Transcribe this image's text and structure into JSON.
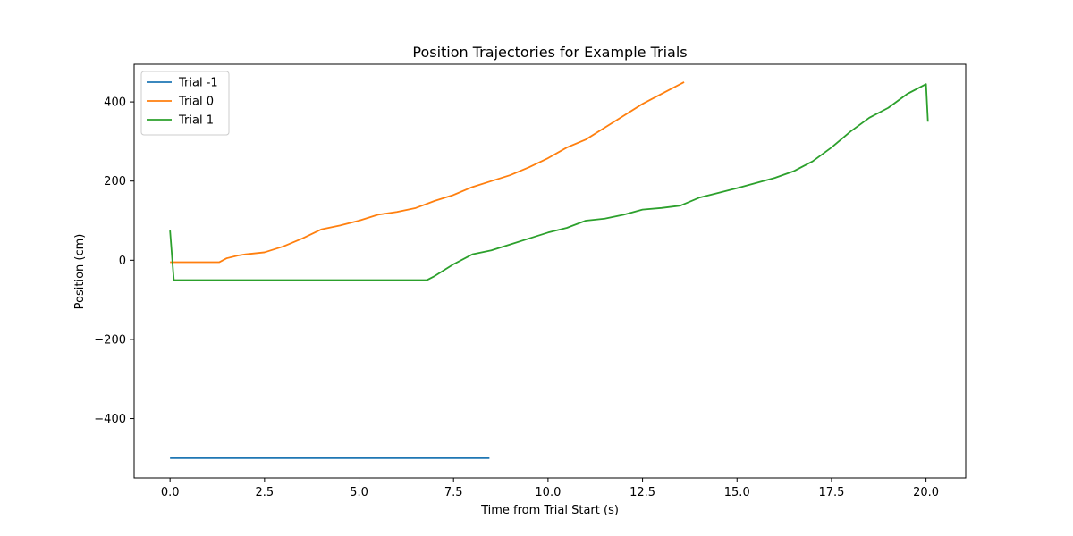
{
  "chart_data": {
    "type": "line",
    "title": "Position Trajectories for Example Trials",
    "xlabel": "Time from Trial Start (s)",
    "ylabel": "Position (cm)",
    "xlim": [
      -0.95,
      21.05
    ],
    "ylim": [
      -550,
      495
    ],
    "xticks": [
      0.0,
      2.5,
      5.0,
      7.5,
      10.0,
      12.5,
      15.0,
      17.5,
      20.0
    ],
    "xtick_labels": [
      "0.0",
      "2.5",
      "5.0",
      "7.5",
      "10.0",
      "12.5",
      "15.0",
      "17.5",
      "20.0"
    ],
    "yticks": [
      -400,
      -200,
      0,
      200,
      400
    ],
    "ytick_labels": [
      "−400",
      "−200",
      "0",
      "200",
      "400"
    ],
    "grid": false,
    "legend_position": "top-left",
    "series": [
      {
        "name": "Trial -1",
        "color": "#1f77b4",
        "x": [
          0.0,
          8.45
        ],
        "y": [
          -500,
          -500
        ]
      },
      {
        "name": "Trial 0",
        "color": "#ff7f0e",
        "x": [
          0.0,
          0.5,
          1.0,
          1.3,
          1.5,
          1.8,
          2.0,
          2.5,
          3.0,
          3.5,
          4.0,
          4.5,
          5.0,
          5.5,
          6.0,
          6.5,
          7.0,
          7.5,
          8.0,
          8.5,
          9.0,
          9.5,
          10.0,
          10.5,
          11.0,
          11.5,
          12.0,
          12.5,
          13.0,
          13.6
        ],
        "y": [
          -5,
          -5,
          -5,
          -5,
          5,
          12,
          15,
          20,
          35,
          55,
          78,
          88,
          100,
          115,
          122,
          132,
          150,
          165,
          185,
          200,
          215,
          235,
          258,
          285,
          305,
          335,
          365,
          395,
          420,
          450
        ]
      },
      {
        "name": "Trial 1",
        "color": "#2ca02c",
        "x": [
          0.0,
          0.1,
          1.0,
          2.0,
          3.0,
          4.0,
          5.0,
          6.0,
          6.8,
          7.0,
          7.5,
          8.0,
          8.5,
          9.0,
          9.5,
          10.0,
          10.5,
          11.0,
          11.5,
          12.0,
          12.5,
          13.0,
          13.5,
          14.0,
          14.5,
          15.0,
          15.5,
          16.0,
          16.5,
          17.0,
          17.5,
          18.0,
          18.5,
          19.0,
          19.5,
          20.0,
          20.05
        ],
        "y": [
          75,
          -50,
          -50,
          -50,
          -50,
          -50,
          -50,
          -50,
          -50,
          -40,
          -10,
          15,
          25,
          40,
          55,
          70,
          82,
          100,
          105,
          115,
          128,
          132,
          138,
          158,
          170,
          182,
          195,
          208,
          225,
          250,
          285,
          325,
          360,
          385,
          420,
          445,
          350
        ]
      }
    ]
  }
}
